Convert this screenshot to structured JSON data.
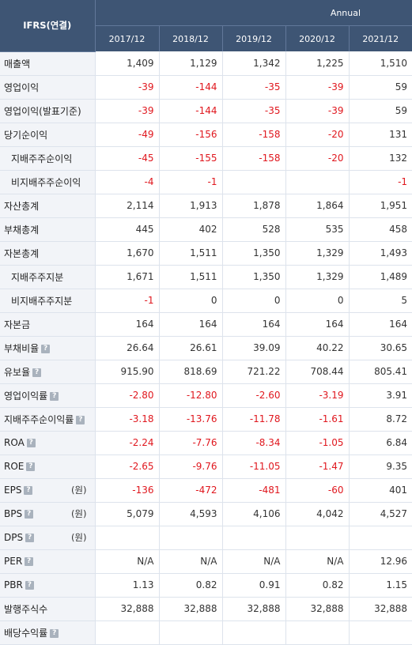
{
  "header": {
    "corner": "IFRS(연결)",
    "period_group": "Annual",
    "years": [
      "2017/12",
      "2018/12",
      "2019/12",
      "2020/12",
      "2021/12"
    ]
  },
  "help_icon": "?",
  "rows": [
    {
      "label": "매출액",
      "sub": false,
      "help": false,
      "unit": "",
      "values": [
        "1,409",
        "1,129",
        "1,342",
        "1,225",
        "1,510"
      ]
    },
    {
      "label": "영업이익",
      "sub": false,
      "help": false,
      "unit": "",
      "values": [
        "-39",
        "-144",
        "-35",
        "-39",
        "59"
      ]
    },
    {
      "label": "영업이익(발표기준)",
      "sub": false,
      "help": false,
      "unit": "",
      "values": [
        "-39",
        "-144",
        "-35",
        "-39",
        "59"
      ]
    },
    {
      "label": "당기순이익",
      "sub": false,
      "help": false,
      "unit": "",
      "values": [
        "-49",
        "-156",
        "-158",
        "-20",
        "131"
      ]
    },
    {
      "label": "지배주주순이익",
      "sub": true,
      "help": false,
      "unit": "",
      "values": [
        "-45",
        "-155",
        "-158",
        "-20",
        "132"
      ]
    },
    {
      "label": "비지배주주순이익",
      "sub": true,
      "help": false,
      "unit": "",
      "values": [
        "-4",
        "-1",
        "",
        "",
        "-1"
      ]
    },
    {
      "label": "자산총계",
      "sub": false,
      "help": false,
      "unit": "",
      "values": [
        "2,114",
        "1,913",
        "1,878",
        "1,864",
        "1,951"
      ]
    },
    {
      "label": "부채총계",
      "sub": false,
      "help": false,
      "unit": "",
      "values": [
        "445",
        "402",
        "528",
        "535",
        "458"
      ]
    },
    {
      "label": "자본총계",
      "sub": false,
      "help": false,
      "unit": "",
      "values": [
        "1,670",
        "1,511",
        "1,350",
        "1,329",
        "1,493"
      ]
    },
    {
      "label": "지배주주지분",
      "sub": true,
      "help": false,
      "unit": "",
      "values": [
        "1,671",
        "1,511",
        "1,350",
        "1,329",
        "1,489"
      ]
    },
    {
      "label": "비지배주주지분",
      "sub": true,
      "help": false,
      "unit": "",
      "values": [
        "-1",
        "0",
        "0",
        "0",
        "5"
      ]
    },
    {
      "label": "자본금",
      "sub": false,
      "help": false,
      "unit": "",
      "values": [
        "164",
        "164",
        "164",
        "164",
        "164"
      ]
    },
    {
      "label": "부채비율",
      "sub": false,
      "help": true,
      "unit": "",
      "values": [
        "26.64",
        "26.61",
        "39.09",
        "40.22",
        "30.65"
      ]
    },
    {
      "label": "유보율",
      "sub": false,
      "help": true,
      "unit": "",
      "values": [
        "915.90",
        "818.69",
        "721.22",
        "708.44",
        "805.41"
      ]
    },
    {
      "label": "영업이익률",
      "sub": false,
      "help": true,
      "unit": "",
      "values": [
        "-2.80",
        "-12.80",
        "-2.60",
        "-3.19",
        "3.91"
      ]
    },
    {
      "label": "지배주주순이익률",
      "sub": false,
      "help": true,
      "unit": "",
      "values": [
        "-3.18",
        "-13.76",
        "-11.78",
        "-1.61",
        "8.72"
      ]
    },
    {
      "label": "ROA",
      "sub": false,
      "help": true,
      "unit": "",
      "values": [
        "-2.24",
        "-7.76",
        "-8.34",
        "-1.05",
        "6.84"
      ]
    },
    {
      "label": "ROE",
      "sub": false,
      "help": true,
      "unit": "",
      "values": [
        "-2.65",
        "-9.76",
        "-11.05",
        "-1.47",
        "9.35"
      ]
    },
    {
      "label": "EPS",
      "sub": false,
      "help": true,
      "unit": "(원)",
      "values": [
        "-136",
        "-472",
        "-481",
        "-60",
        "401"
      ]
    },
    {
      "label": "BPS",
      "sub": false,
      "help": true,
      "unit": "(원)",
      "values": [
        "5,079",
        "4,593",
        "4,106",
        "4,042",
        "4,527"
      ]
    },
    {
      "label": "DPS",
      "sub": false,
      "help": true,
      "unit": "(원)",
      "values": [
        "",
        "",
        "",
        "",
        ""
      ]
    },
    {
      "label": "PER",
      "sub": false,
      "help": true,
      "unit": "",
      "values": [
        "N/A",
        "N/A",
        "N/A",
        "N/A",
        "12.96"
      ]
    },
    {
      "label": "PBR",
      "sub": false,
      "help": true,
      "unit": "",
      "values": [
        "1.13",
        "0.82",
        "0.91",
        "0.82",
        "1.15"
      ]
    },
    {
      "label": "발행주식수",
      "sub": false,
      "help": false,
      "unit": "",
      "values": [
        "32,888",
        "32,888",
        "32,888",
        "32,888",
        "32,888"
      ]
    },
    {
      "label": "배당수익률",
      "sub": false,
      "help": true,
      "unit": "",
      "values": [
        "",
        "",
        "",
        "",
        ""
      ]
    }
  ]
}
